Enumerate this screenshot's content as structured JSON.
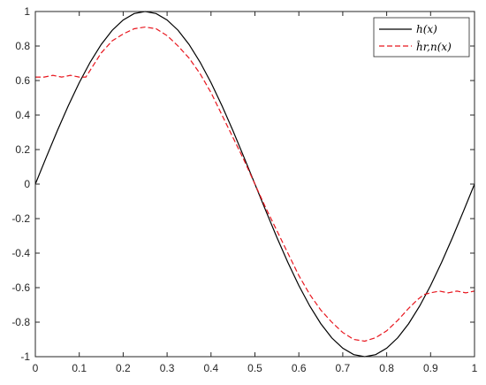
{
  "chart_data": {
    "type": "line",
    "title": "",
    "xlabel": "",
    "ylabel": "",
    "xlim": [
      0,
      1
    ],
    "ylim": [
      -1,
      1
    ],
    "grid": false,
    "legend_position": "top-right",
    "x_ticks": [
      "0",
      "0.1",
      "0.2",
      "0.3",
      "0.4",
      "0.5",
      "0.6",
      "0.7",
      "0.8",
      "0.9",
      "1"
    ],
    "y_ticks": [
      "1",
      "0.8",
      "0.6",
      "0.4",
      "0.2",
      "0",
      "-0.2",
      "-0.4",
      "-0.6",
      "-0.8",
      "-1"
    ],
    "series": [
      {
        "name": "h(x)",
        "color": "#000000",
        "style": "solid",
        "x": [
          0,
          0.025,
          0.05,
          0.075,
          0.1,
          0.125,
          0.15,
          0.175,
          0.2,
          0.225,
          0.25,
          0.275,
          0.3,
          0.325,
          0.35,
          0.375,
          0.4,
          0.425,
          0.45,
          0.475,
          0.5,
          0.525,
          0.55,
          0.575,
          0.6,
          0.625,
          0.65,
          0.675,
          0.7,
          0.725,
          0.75,
          0.775,
          0.8,
          0.825,
          0.85,
          0.875,
          0.9,
          0.925,
          0.95,
          0.975,
          1
        ],
        "y": [
          0,
          0.156,
          0.309,
          0.454,
          0.588,
          0.707,
          0.809,
          0.891,
          0.951,
          0.988,
          1,
          0.988,
          0.951,
          0.891,
          0.809,
          0.707,
          0.588,
          0.454,
          0.309,
          0.156,
          0,
          -0.156,
          -0.309,
          -0.454,
          -0.588,
          -0.707,
          -0.809,
          -0.891,
          -0.951,
          -0.988,
          -1,
          -0.988,
          -0.951,
          -0.891,
          -0.809,
          -0.707,
          -0.588,
          -0.454,
          -0.309,
          -0.156,
          0
        ]
      },
      {
        "name": "ĥr,n(x)",
        "color": "#e8161e",
        "style": "dashed",
        "x": [
          0,
          0.02,
          0.04,
          0.06,
          0.08,
          0.1,
          0.115,
          0.13,
          0.15,
          0.175,
          0.2,
          0.225,
          0.25,
          0.275,
          0.3,
          0.325,
          0.35,
          0.375,
          0.4,
          0.425,
          0.45,
          0.475,
          0.5,
          0.525,
          0.55,
          0.575,
          0.6,
          0.625,
          0.65,
          0.675,
          0.7,
          0.725,
          0.75,
          0.775,
          0.8,
          0.825,
          0.85,
          0.87,
          0.885,
          0.9,
          0.92,
          0.94,
          0.96,
          0.98,
          1
        ],
        "y": [
          0.62,
          0.62,
          0.63,
          0.62,
          0.63,
          0.62,
          0.62,
          0.68,
          0.76,
          0.83,
          0.87,
          0.9,
          0.91,
          0.9,
          0.86,
          0.8,
          0.73,
          0.64,
          0.53,
          0.4,
          0.27,
          0.14,
          0,
          -0.14,
          -0.27,
          -0.4,
          -0.53,
          -0.64,
          -0.73,
          -0.8,
          -0.86,
          -0.9,
          -0.91,
          -0.89,
          -0.85,
          -0.79,
          -0.72,
          -0.67,
          -0.64,
          -0.63,
          -0.62,
          -0.63,
          -0.62,
          -0.63,
          -0.62
        ]
      }
    ]
  }
}
